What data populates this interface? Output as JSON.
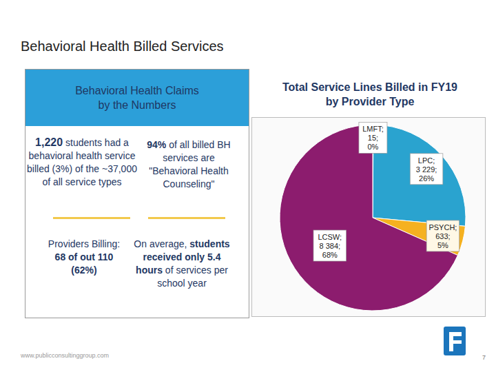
{
  "slide": {
    "title": "Behavioral Health Billed Services",
    "footer": "www.publicconsultinggroup.com",
    "page": "7"
  },
  "panel": {
    "title": "Behavioral Health Claims by the Numbers",
    "stats": [
      [
        {
          "text": "1,220",
          "emphasis": true
        },
        {
          "text": " students had a behavioral health service billed (3%) of the ~37,000 of all service types",
          "emphasis": false
        }
      ],
      [
        {
          "text": "94%",
          "emphasis": true
        },
        {
          "text": " of all billed BH services are \"Behavioral Health Counseling\"",
          "emphasis": false
        }
      ],
      [
        {
          "text": "Providers Billing: ",
          "emphasis": false
        },
        {
          "text": "68 of out 110 (62%)",
          "emphasis": true
        }
      ],
      [
        {
          "text": "On average, ",
          "emphasis": false
        },
        {
          "text": "students received only 5.4 hours",
          "emphasis": true
        },
        {
          "text": " of services per school year",
          "emphasis": false
        }
      ]
    ]
  },
  "chart_data": {
    "type": "pie",
    "title": "Total Service Lines Billed in FY19 by Provider Type",
    "categories": [
      "LMFT",
      "LPC",
      "PSYCH",
      "LCSW"
    ],
    "values": [
      15,
      3229,
      633,
      8384
    ],
    "value_labels": [
      "LMFT; 15; 0%",
      "LPC; 3 229; 26%",
      "PSYCH; 633; 5%",
      "LCSW; 8 384; 68%"
    ],
    "colors": [
      "#7f7f7f",
      "#2aa3cf",
      "#f5b120",
      "#8c1c6e"
    ],
    "data_labels": true
  }
}
